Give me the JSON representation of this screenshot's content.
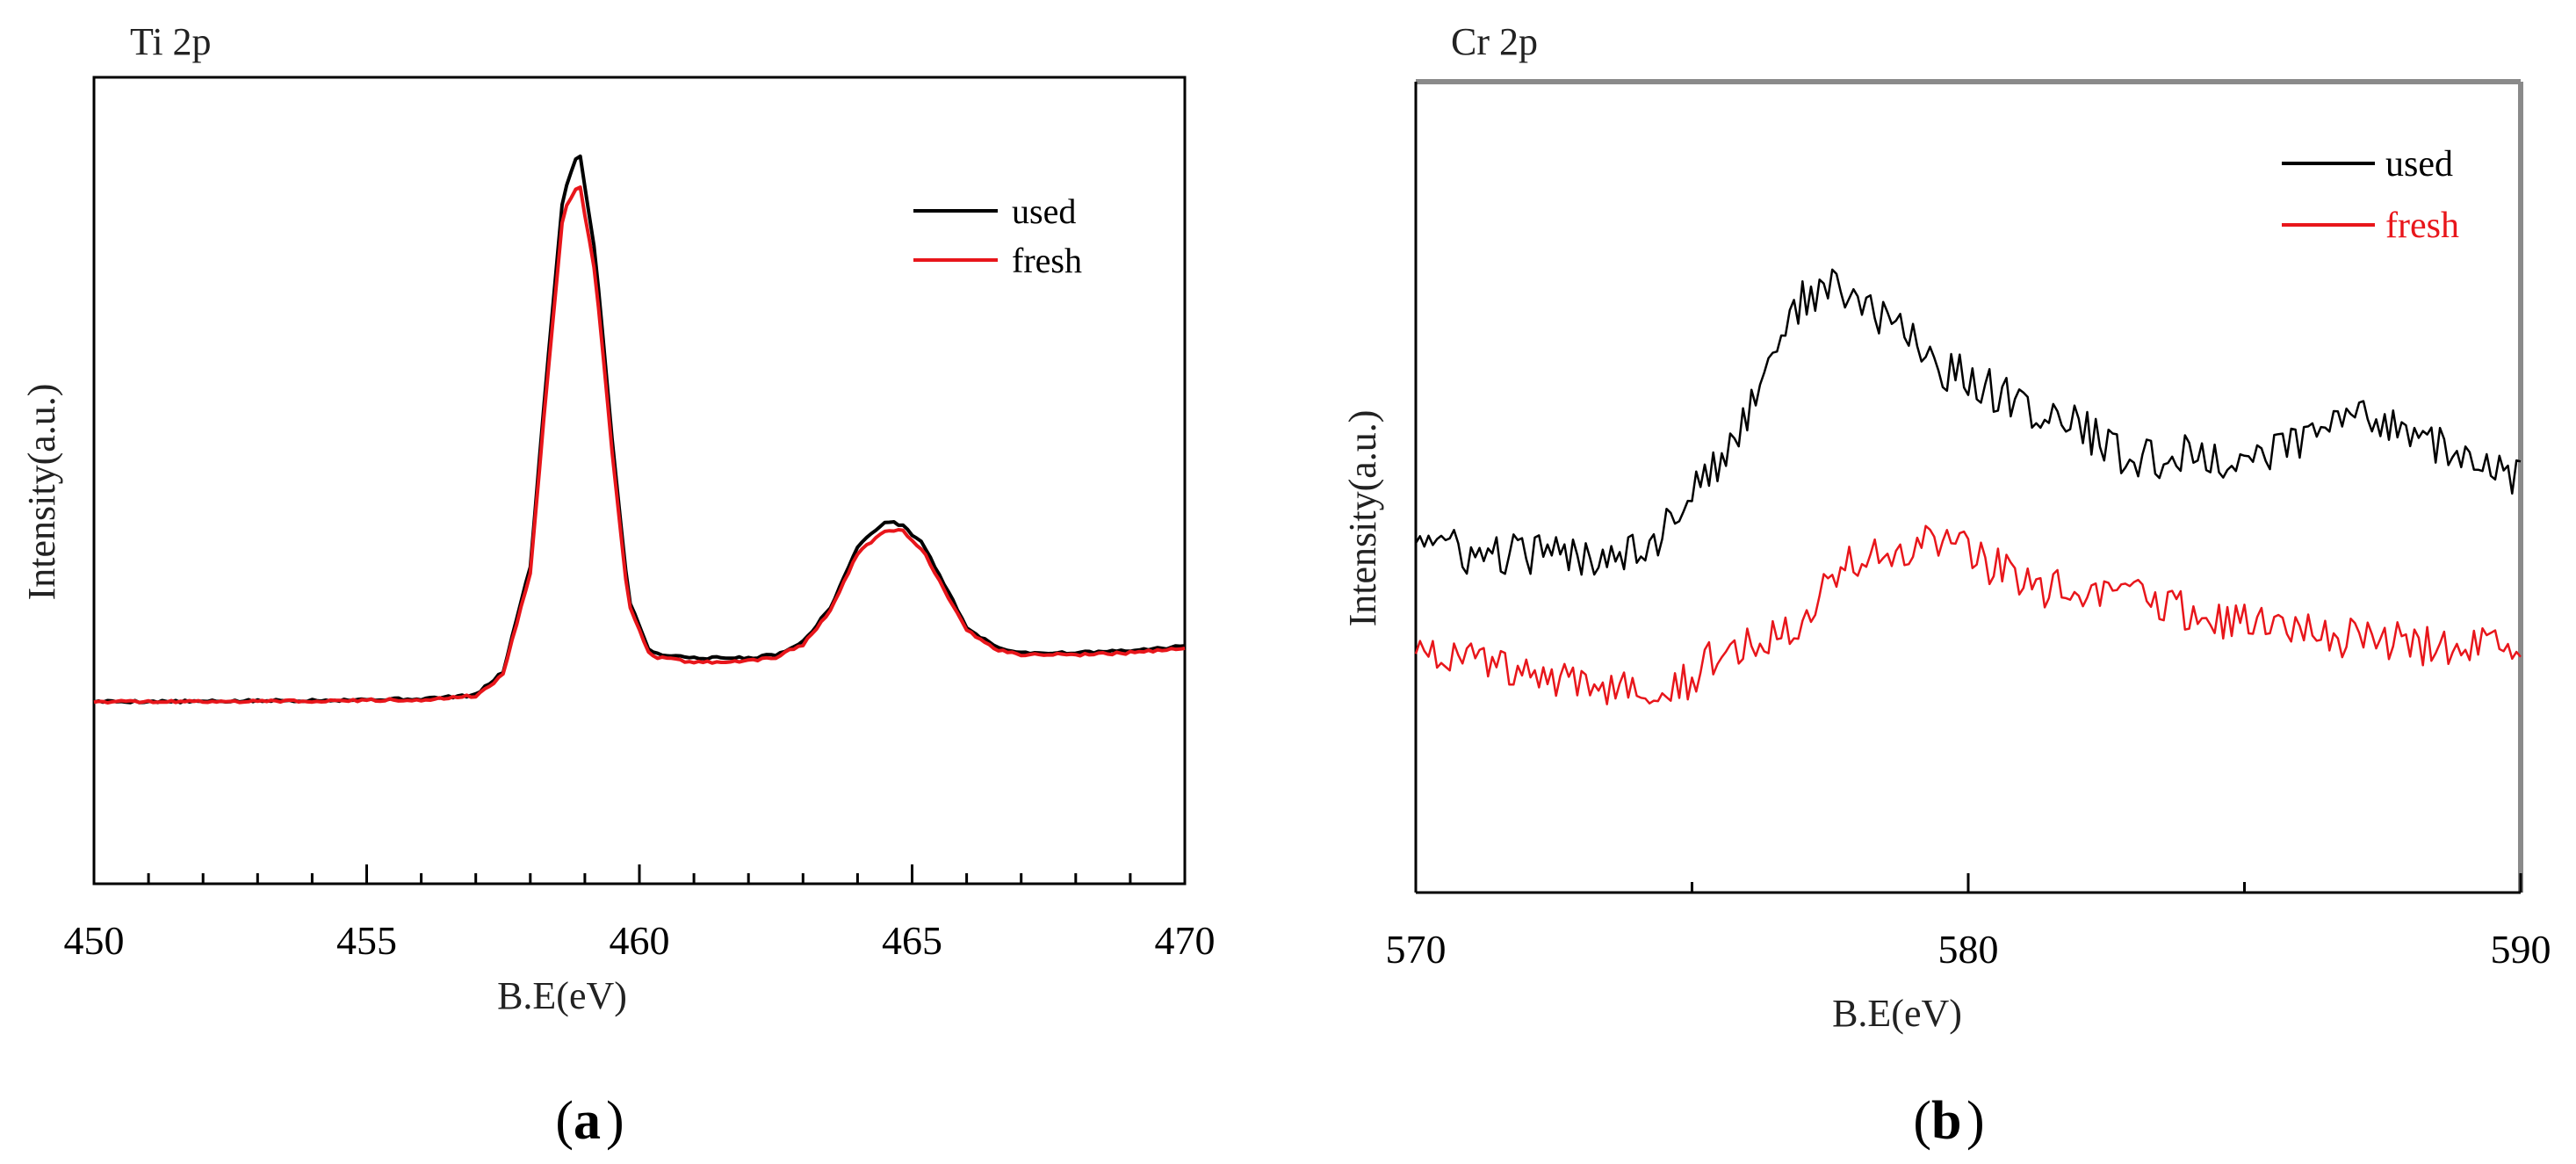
{
  "chart_data": [
    {
      "type": "line",
      "panel_label": "a",
      "title": "Ti 2p",
      "xlabel": "B.E(eV)",
      "ylabel": "Intensity(a.u.)",
      "xlim": [
        450,
        470
      ],
      "ylim": [
        0,
        1
      ],
      "x_ticks": [
        450,
        455,
        460,
        465,
        470
      ],
      "legend": "top-right",
      "series": [
        {
          "name": "used",
          "color": "#000000",
          "x": [
            450,
            452,
            454,
            456,
            457,
            457.5,
            458,
            458.3,
            458.6,
            458.9,
            459.2,
            459.5,
            459.8,
            460.2,
            461,
            462,
            462.5,
            463,
            463.5,
            464,
            464.5,
            464.8,
            465.2,
            465.6,
            466,
            466.5,
            467,
            468,
            469,
            470
          ],
          "y": [
            0.139,
            0.139,
            0.141,
            0.143,
            0.149,
            0.185,
            0.35,
            0.65,
            0.93,
            1.0,
            0.83,
            0.55,
            0.3,
            0.215,
            0.207,
            0.207,
            0.212,
            0.232,
            0.285,
            0.38,
            0.42,
            0.415,
            0.385,
            0.32,
            0.255,
            0.225,
            0.215,
            0.215,
            0.218,
            0.225
          ]
        },
        {
          "name": "fresh",
          "color": "#e8161b",
          "x": [
            450,
            452,
            454,
            456,
            457,
            457.5,
            458,
            458.3,
            458.6,
            458.9,
            459.2,
            459.5,
            459.8,
            460.2,
            461,
            462,
            462.5,
            463,
            463.5,
            464,
            464.5,
            464.8,
            465.2,
            465.6,
            466,
            466.5,
            467,
            468,
            469,
            470
          ],
          "y": [
            0.139,
            0.139,
            0.14,
            0.142,
            0.148,
            0.18,
            0.34,
            0.63,
            0.9,
            0.948,
            0.8,
            0.53,
            0.29,
            0.21,
            0.2,
            0.202,
            0.208,
            0.228,
            0.28,
            0.37,
            0.405,
            0.407,
            0.375,
            0.31,
            0.25,
            0.221,
            0.212,
            0.212,
            0.215,
            0.222
          ]
        }
      ]
    },
    {
      "type": "line",
      "panel_label": "b",
      "title": "Cr 2p",
      "xlabel": "B.E(eV)",
      "ylabel": "Intensity(a.u.)",
      "xlim": [
        570,
        590
      ],
      "ylim": [
        0,
        1
      ],
      "x_ticks": [
        570,
        580,
        590
      ],
      "legend": "top-right",
      "series": [
        {
          "name": "used",
          "color": "#000000",
          "x": [
            570,
            571,
            572,
            573,
            574,
            574.5,
            575,
            575.5,
            576,
            576.5,
            577,
            577.5,
            578,
            578.5,
            579,
            579.5,
            580,
            581,
            582,
            583,
            584,
            585,
            586,
            587,
            588,
            589,
            590
          ],
          "y": [
            0.43,
            0.395,
            0.4,
            0.395,
            0.41,
            0.43,
            0.5,
            0.52,
            0.6,
            0.7,
            0.76,
            0.78,
            0.76,
            0.73,
            0.71,
            0.66,
            0.65,
            0.61,
            0.58,
            0.53,
            0.54,
            0.53,
            0.56,
            0.6,
            0.58,
            0.53,
            0.51
          ]
        },
        {
          "name": "fresh",
          "color": "#e8161b",
          "x": [
            570,
            571,
            572,
            573,
            574,
            575,
            575.5,
            576,
            577,
            577.5,
            578,
            579,
            579.5,
            580,
            581,
            582,
            583,
            584,
            585,
            586,
            587,
            588,
            589,
            590
          ],
          "y": [
            0.27,
            0.25,
            0.225,
            0.21,
            0.215,
            0.22,
            0.26,
            0.27,
            0.31,
            0.37,
            0.39,
            0.4,
            0.42,
            0.4,
            0.36,
            0.34,
            0.34,
            0.32,
            0.3,
            0.29,
            0.28,
            0.27,
            0.27,
            0.265
          ]
        }
      ]
    }
  ]
}
